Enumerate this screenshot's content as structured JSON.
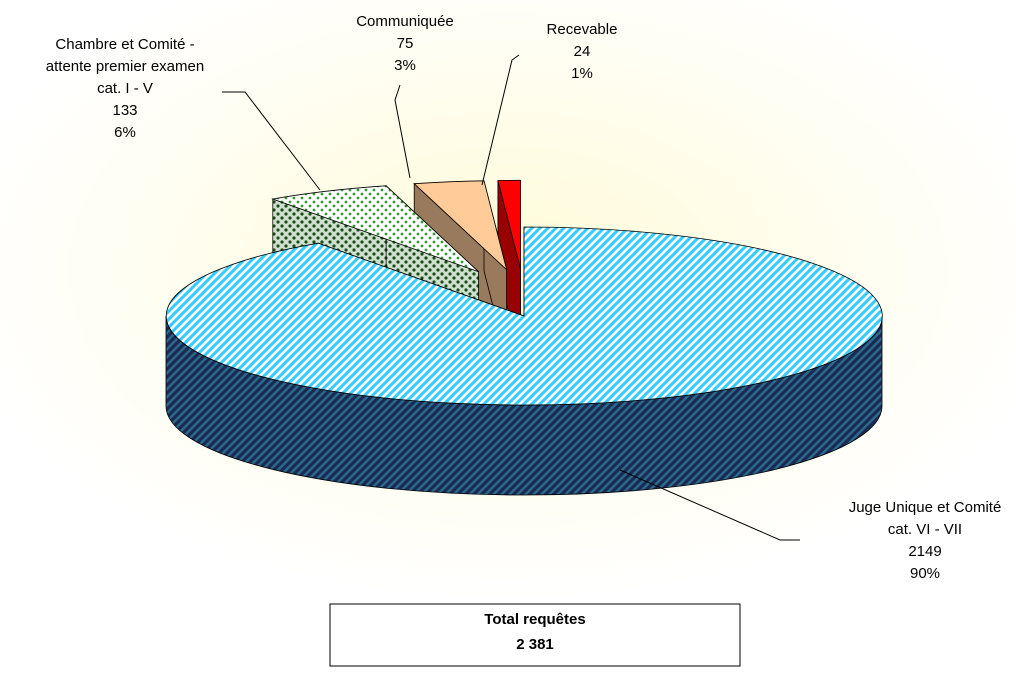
{
  "chart_data": {
    "type": "pie",
    "categories": [
      [
        "Juge Unique et Comité",
        "cat. VI - VII"
      ],
      [
        "Chambre et Comité -",
        "attente premier examen",
        "cat. I - V"
      ],
      [
        "Communiquée"
      ],
      [
        "Recevable"
      ]
    ],
    "values": [
      2149,
      133,
      75,
      24
    ],
    "value_labels": [
      "90%",
      "6%",
      "3%",
      "1%"
    ],
    "colors": [
      "#33ccff",
      "#339933",
      "#ffcc99",
      "#ff0000"
    ],
    "total_title": "Total requêtes",
    "total": "2 381"
  }
}
